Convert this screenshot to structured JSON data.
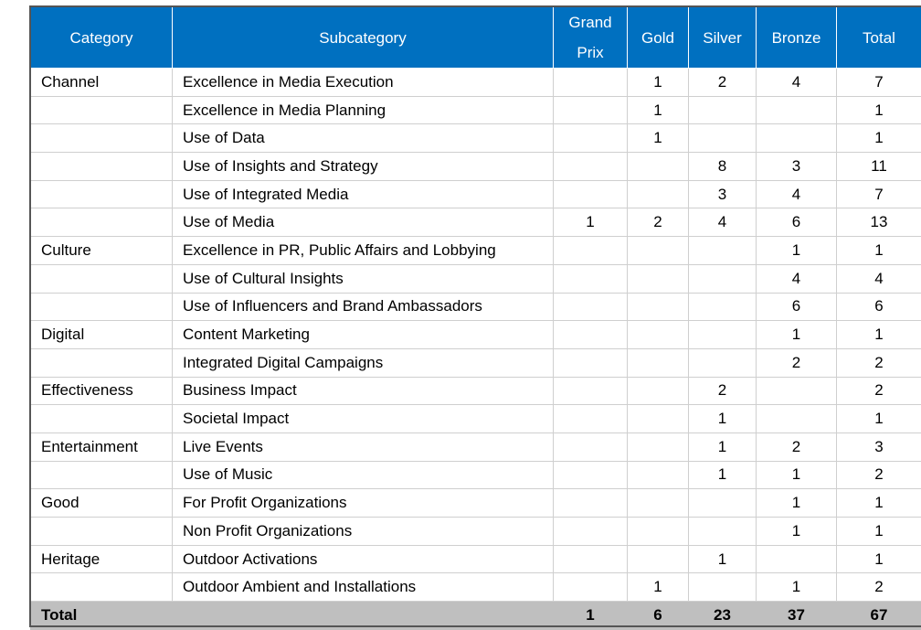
{
  "table": {
    "header": [
      "Category",
      "Subcategory",
      "Grand Prix",
      "Gold",
      "Silver",
      "Bronze",
      "Total"
    ],
    "rows": [
      [
        "Channel",
        "Excellence in Media Execution",
        null,
        1,
        2,
        4,
        7
      ],
      [
        null,
        "Excellence in Media Planning",
        null,
        1,
        null,
        null,
        1
      ],
      [
        null,
        "Use of Data",
        null,
        1,
        null,
        null,
        1
      ],
      [
        null,
        "Use of Insights and Strategy",
        null,
        null,
        8,
        3,
        11
      ],
      [
        null,
        "Use of Integrated Media",
        null,
        null,
        3,
        4,
        7
      ],
      [
        null,
        "Use of Media",
        1,
        2,
        4,
        6,
        13
      ],
      [
        "Culture",
        "Excellence in PR, Public Affairs and Lobbying",
        null,
        null,
        null,
        1,
        1
      ],
      [
        null,
        "Use of Cultural Insights",
        null,
        null,
        null,
        4,
        4
      ],
      [
        null,
        "Use of Influencers and Brand Ambassadors",
        null,
        null,
        null,
        6,
        6
      ],
      [
        "Digital",
        "Content Marketing",
        null,
        null,
        null,
        1,
        1
      ],
      [
        null,
        "Integrated Digital Campaigns",
        null,
        null,
        null,
        2,
        2
      ],
      [
        "Effectiveness",
        "Business Impact",
        null,
        null,
        2,
        null,
        2
      ],
      [
        null,
        "Societal Impact",
        null,
        null,
        1,
        null,
        1
      ],
      [
        "Entertainment",
        "Live Events",
        null,
        null,
        1,
        2,
        3
      ],
      [
        null,
        "Use of Music",
        null,
        null,
        1,
        1,
        2
      ],
      [
        "Good",
        "For Profit Organizations",
        null,
        null,
        null,
        1,
        1
      ],
      [
        null,
        "Non Profit Organizations",
        null,
        null,
        null,
        1,
        1
      ],
      [
        "Heritage",
        "Outdoor Activations",
        null,
        null,
        1,
        null,
        1
      ],
      [
        null,
        "Outdoor Ambient and Installations",
        null,
        1,
        null,
        1,
        2
      ]
    ],
    "total": {
      "label": "Total",
      "values": [
        1,
        6,
        23,
        37,
        67
      ]
    }
  }
}
